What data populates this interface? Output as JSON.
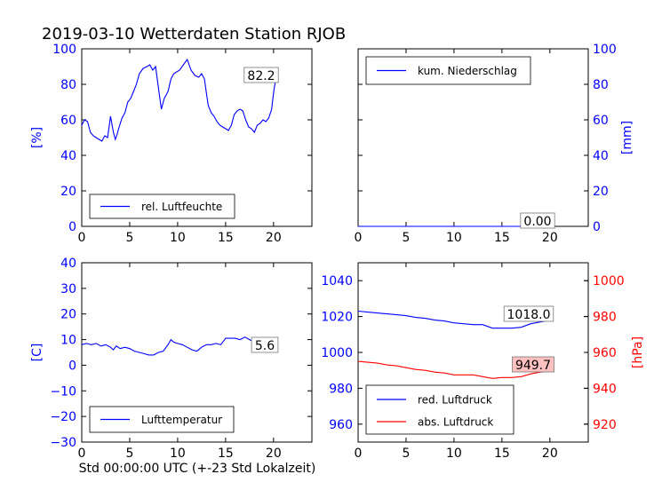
{
  "title": "2019-03-10 Wetterdaten Station RJOB",
  "xlabel_bottom": "Std 00:00:00 UTC (+-23 Std Lokalzeit)",
  "colors": {
    "blue": "#0000ff",
    "red": "#ff0000",
    "black": "#000000",
    "boxfill_red": "#ffc0c0"
  },
  "chart_data": [
    {
      "id": "humidity",
      "type": "line",
      "xlim": [
        0,
        24
      ],
      "xticks": [
        "0",
        "5",
        "10",
        "15",
        "20"
      ],
      "ylim": [
        0,
        100
      ],
      "yticks": [
        "0",
        "20",
        "40",
        "60",
        "80",
        "100"
      ],
      "ylabel": "[%]",
      "last_value_label": "82.2",
      "legend": "lower-left",
      "series": [
        {
          "name": "rel. Luftfeuchte",
          "color": "#0000ff",
          "x": [
            0,
            0.3,
            0.6,
            0.9,
            1.2,
            1.5,
            1.8,
            2.1,
            2.4,
            2.7,
            3.0,
            3.3,
            3.5,
            3.7,
            3.9,
            4.2,
            4.5,
            4.8,
            5.1,
            5.4,
            5.7,
            6.0,
            6.4,
            6.8,
            7.1,
            7.4,
            7.7,
            8.0,
            8.3,
            8.6,
            9.0,
            9.3,
            9.6,
            9.9,
            10.2,
            10.6,
            11.0,
            11.4,
            11.8,
            12.2,
            12.5,
            12.8,
            13.0,
            13.2,
            13.5,
            13.8,
            14.1,
            14.4,
            14.7,
            15.0,
            15.3,
            15.6,
            15.9,
            16.2,
            16.5,
            16.8,
            17.1,
            17.4,
            17.7,
            18.0,
            18.3,
            18.6,
            18.9,
            19.2,
            19.5,
            19.8,
            20.0,
            20.2
          ],
          "y": [
            57,
            60,
            59,
            53,
            51,
            50,
            49,
            48,
            51,
            50,
            62,
            53,
            49,
            52,
            56,
            61,
            64,
            70,
            72,
            76,
            80,
            86,
            89,
            90,
            91,
            88,
            90,
            78,
            66,
            72,
            76,
            83,
            86,
            87,
            88,
            91,
            94,
            88,
            85,
            84,
            86,
            83,
            75,
            68,
            64,
            62,
            59,
            57,
            56,
            55,
            54,
            57,
            63,
            65,
            66,
            65,
            60,
            56,
            55,
            53,
            57,
            58,
            60,
            59,
            61,
            66,
            75,
            82.2
          ]
        }
      ]
    },
    {
      "id": "precipitation",
      "type": "line",
      "xlim": [
        0,
        24
      ],
      "xticks": [
        "0",
        "5",
        "10",
        "15",
        "20"
      ],
      "ylim": [
        0,
        100
      ],
      "yticks": [
        "0",
        "20",
        "40",
        "60",
        "80",
        "100"
      ],
      "ylabel": "[mm]",
      "yaxis_side": "right",
      "last_value_label": "0.00",
      "legend": "upper-left",
      "series": [
        {
          "name": "kum. Niederschlag",
          "color": "#0000ff",
          "x": [
            0,
            20.2
          ],
          "y": [
            0,
            0
          ]
        }
      ]
    },
    {
      "id": "temperature",
      "type": "line",
      "xlim": [
        0,
        24
      ],
      "xticks": [
        "0",
        "5",
        "10",
        "15",
        "20"
      ],
      "ylim": [
        -30,
        40
      ],
      "yticks": [
        "−30",
        "−20",
        "−10",
        "0",
        "10",
        "20",
        "30",
        "40"
      ],
      "ylabel": "[C]",
      "last_value_label": "5.6",
      "legend": "lower-left",
      "series": [
        {
          "name": "Lufttemperatur",
          "color": "#0000ff",
          "x": [
            0,
            0.5,
            1.0,
            1.5,
            2.0,
            2.5,
            3.0,
            3.3,
            3.6,
            4.0,
            4.5,
            5.0,
            5.5,
            6.0,
            6.5,
            7.0,
            7.5,
            8.0,
            8.5,
            9.0,
            9.3,
            9.6,
            10.0,
            10.5,
            11.0,
            11.5,
            12.0,
            12.5,
            13.0,
            13.5,
            14.0,
            14.5,
            15.0,
            15.5,
            16.0,
            16.5,
            17.0,
            17.5,
            18.0,
            18.5,
            19.0,
            19.5,
            20.0,
            20.2
          ],
          "y": [
            8,
            8.5,
            8,
            8.5,
            7.5,
            8,
            7,
            6,
            7.5,
            6.5,
            7,
            6.5,
            5.5,
            5,
            4.5,
            4,
            4,
            5,
            5.5,
            8,
            10,
            9,
            8.5,
            8,
            7,
            6,
            5.5,
            7,
            8,
            8,
            8.5,
            8,
            10.5,
            10.5,
            10.5,
            10,
            11,
            10,
            9,
            8,
            7.5,
            7,
            6,
            5.6
          ]
        }
      ]
    },
    {
      "id": "pressure",
      "type": "line",
      "xlim": [
        0,
        24
      ],
      "xticks": [
        "0",
        "5",
        "10",
        "15",
        "20"
      ],
      "ylim_left": [
        950,
        1050
      ],
      "yticks_left": [
        "960",
        "980",
        "1000",
        "1020",
        "1040"
      ],
      "ylim_right": [
        910,
        1010
      ],
      "yticks_right": [
        "920",
        "940",
        "960",
        "980",
        "1000"
      ],
      "ylabel_right": "[hPa]",
      "legend": "lower-left",
      "series": [
        {
          "name": "red. Luftdruck",
          "color": "#0000ff",
          "axis": "left",
          "last_value_label": "1018.0",
          "x": [
            0,
            1,
            2,
            3,
            4,
            5,
            6,
            7,
            8,
            9,
            10,
            11,
            12,
            13,
            14,
            15,
            16,
            17,
            18,
            19,
            20.2
          ],
          "y": [
            1023,
            1022.5,
            1022,
            1021.5,
            1021,
            1020.5,
            1019.5,
            1019,
            1018,
            1017.5,
            1016.5,
            1016,
            1015.5,
            1015.5,
            1013.5,
            1013.5,
            1013.5,
            1014,
            1016,
            1017,
            1018.0
          ]
        },
        {
          "name": "abs. Luftdruck",
          "color": "#ff0000",
          "axis": "right",
          "last_value_label": "949.7",
          "x": [
            0,
            1,
            2,
            3,
            4,
            5,
            6,
            7,
            8,
            9,
            10,
            11,
            12,
            13,
            14,
            15,
            16,
            17,
            18,
            19,
            20.2
          ],
          "y": [
            955,
            954.5,
            954,
            953,
            952.5,
            951.5,
            950.5,
            950,
            949,
            948.5,
            947.5,
            947.5,
            947.5,
            946.5,
            945.5,
            946,
            946,
            946.5,
            948,
            949,
            949.7
          ]
        }
      ]
    }
  ]
}
